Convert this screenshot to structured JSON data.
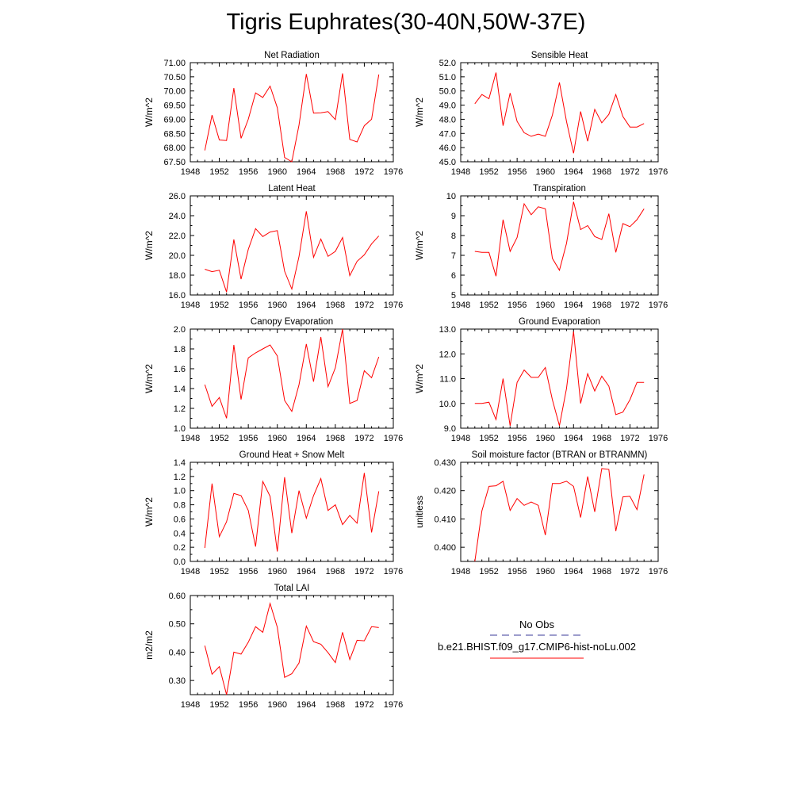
{
  "page": {
    "title": "Tigris Euphrates(30-40N,50W-37E)"
  },
  "colors": {
    "series": "#ff0000",
    "obs": "#3b3b99",
    "axis": "#000000"
  },
  "legend": {
    "obs_label": "No Obs",
    "model_label": "b.e21.BHIST.f09_g17.CMIP6-hist-noLu.002"
  },
  "chart_data": [
    {
      "type": "line",
      "title": "Net Radiation",
      "ylabel": "W/m^2",
      "xlim": [
        1948,
        1976
      ],
      "ylim": [
        67.5,
        71.0
      ],
      "xticks": [
        1948,
        1952,
        1956,
        1960,
        1964,
        1968,
        1972,
        1976
      ],
      "yticks": [
        "67.50",
        "68.00",
        "68.50",
        "69.00",
        "69.50",
        "70.00",
        "70.50",
        "71.00"
      ],
      "x": [
        1950,
        1951,
        1952,
        1953,
        1954,
        1955,
        1956,
        1957,
        1958,
        1959,
        1960,
        1961,
        1962,
        1963,
        1964,
        1965,
        1966,
        1967,
        1968,
        1969,
        1970,
        1971,
        1972,
        1973,
        1974
      ],
      "series": [
        {
          "values": [
            67.9,
            69.15,
            68.27,
            68.25,
            70.1,
            68.33,
            69.0,
            69.93,
            69.77,
            70.17,
            69.41,
            67.65,
            67.5,
            68.8,
            70.6,
            69.22,
            69.23,
            69.27,
            68.99,
            70.62,
            68.29,
            68.2,
            68.77,
            69.0,
            70.58
          ]
        }
      ]
    },
    {
      "type": "line",
      "title": "Sensible Heat",
      "ylabel": "W/m^2",
      "xlim": [
        1948,
        1976
      ],
      "ylim": [
        45.0,
        52.0
      ],
      "xticks": [
        1948,
        1952,
        1956,
        1960,
        1964,
        1968,
        1972,
        1976
      ],
      "yticks": [
        "45.0",
        "46.0",
        "47.0",
        "48.0",
        "49.0",
        "50.0",
        "51.0",
        "52.0"
      ],
      "x": [
        1950,
        1951,
        1952,
        1953,
        1954,
        1955,
        1956,
        1957,
        1958,
        1959,
        1960,
        1961,
        1962,
        1963,
        1964,
        1965,
        1966,
        1967,
        1968,
        1969,
        1970,
        1971,
        1972,
        1973,
        1974
      ],
      "series": [
        {
          "values": [
            49.1,
            49.75,
            49.45,
            51.3,
            47.55,
            49.85,
            47.85,
            47.05,
            46.8,
            46.95,
            46.8,
            48.3,
            50.6,
            47.85,
            45.6,
            48.55,
            46.45,
            48.7,
            47.75,
            48.35,
            49.75,
            48.2,
            47.45,
            47.45,
            47.7
          ]
        }
      ]
    },
    {
      "type": "line",
      "title": "Latent Heat",
      "ylabel": "W/m^2",
      "xlim": [
        1948,
        1976
      ],
      "ylim": [
        16.0,
        26.0
      ],
      "xticks": [
        1948,
        1952,
        1956,
        1960,
        1964,
        1968,
        1972,
        1976
      ],
      "yticks": [
        "16.0",
        "18.0",
        "20.0",
        "22.0",
        "24.0",
        "26.0"
      ],
      "x": [
        1950,
        1951,
        1952,
        1953,
        1954,
        1955,
        1956,
        1957,
        1958,
        1959,
        1960,
        1961,
        1962,
        1963,
        1964,
        1965,
        1966,
        1967,
        1968,
        1969,
        1970,
        1971,
        1972,
        1973,
        1974
      ],
      "series": [
        {
          "values": [
            18.6,
            18.35,
            18.5,
            16.3,
            21.6,
            17.6,
            20.6,
            22.7,
            21.9,
            22.35,
            22.5,
            18.4,
            16.6,
            19.9,
            24.45,
            19.8,
            21.65,
            19.9,
            20.4,
            21.8,
            17.95,
            19.4,
            20.05,
            21.15,
            21.95
          ]
        }
      ]
    },
    {
      "type": "line",
      "title": "Transpiration",
      "ylabel": "W/m^2",
      "xlim": [
        1948,
        1976
      ],
      "ylim": [
        5,
        10
      ],
      "xticks": [
        1948,
        1952,
        1956,
        1960,
        1964,
        1968,
        1972,
        1976
      ],
      "yticks": [
        "5",
        "6",
        "7",
        "8",
        "9",
        "10"
      ],
      "x": [
        1950,
        1951,
        1952,
        1953,
        1954,
        1955,
        1956,
        1957,
        1958,
        1959,
        1960,
        1961,
        1962,
        1963,
        1964,
        1965,
        1966,
        1967,
        1968,
        1969,
        1970,
        1971,
        1972,
        1973,
        1974
      ],
      "series": [
        {
          "values": [
            7.2,
            7.15,
            7.15,
            5.95,
            8.8,
            7.2,
            7.9,
            9.6,
            9.05,
            9.45,
            9.35,
            6.85,
            6.25,
            7.6,
            9.7,
            8.3,
            8.5,
            7.95,
            7.8,
            9.1,
            7.15,
            8.6,
            8.45,
            8.8,
            9.35
          ]
        }
      ]
    },
    {
      "type": "line",
      "title": "Canopy Evaporation",
      "ylabel": "W/m^2",
      "xlim": [
        1948,
        1976
      ],
      "ylim": [
        1.0,
        2.0
      ],
      "xticks": [
        1948,
        1952,
        1956,
        1960,
        1964,
        1968,
        1972,
        1976
      ],
      "yticks": [
        "1.0",
        "1.2",
        "1.4",
        "1.6",
        "1.8",
        "2.0"
      ],
      "x": [
        1950,
        1951,
        1952,
        1953,
        1954,
        1955,
        1956,
        1957,
        1958,
        1959,
        1960,
        1961,
        1962,
        1963,
        1964,
        1965,
        1966,
        1967,
        1968,
        1969,
        1970,
        1971,
        1972,
        1973,
        1974
      ],
      "series": [
        {
          "values": [
            1.44,
            1.22,
            1.31,
            1.1,
            1.84,
            1.29,
            1.71,
            1.76,
            1.8,
            1.84,
            1.73,
            1.28,
            1.17,
            1.44,
            1.85,
            1.47,
            1.92,
            1.42,
            1.61,
            2.0,
            1.25,
            1.28,
            1.58,
            1.51,
            1.72
          ]
        }
      ]
    },
    {
      "type": "line",
      "title": "Ground Evaporation",
      "ylabel": "W/m^2",
      "xlim": [
        1948,
        1976
      ],
      "ylim": [
        9.0,
        13.0
      ],
      "xticks": [
        1948,
        1952,
        1956,
        1960,
        1964,
        1968,
        1972,
        1976
      ],
      "yticks": [
        "9.0",
        "10.0",
        "11.0",
        "12.0",
        "13.0"
      ],
      "x": [
        1950,
        1951,
        1952,
        1953,
        1954,
        1955,
        1956,
        1957,
        1958,
        1959,
        1960,
        1961,
        1962,
        1963,
        1964,
        1965,
        1966,
        1967,
        1968,
        1969,
        1970,
        1971,
        1972,
        1973,
        1974
      ],
      "series": [
        {
          "values": [
            10.0,
            10.0,
            10.05,
            9.35,
            11.0,
            9.1,
            10.85,
            11.35,
            11.05,
            11.05,
            11.45,
            10.15,
            9.1,
            10.6,
            12.9,
            10.0,
            11.2,
            10.5,
            11.1,
            10.7,
            9.55,
            9.65,
            10.15,
            10.85,
            10.85
          ]
        }
      ]
    },
    {
      "type": "line",
      "title": "Ground Heat + Snow Melt",
      "ylabel": "W/m^2",
      "xlim": [
        1948,
        1976
      ],
      "ylim": [
        0.0,
        1.4
      ],
      "xticks": [
        1948,
        1952,
        1956,
        1960,
        1964,
        1968,
        1972,
        1976
      ],
      "yticks": [
        "0.0",
        "0.2",
        "0.4",
        "0.6",
        "0.8",
        "1.0",
        "1.2",
        "1.4"
      ],
      "x": [
        1950,
        1951,
        1952,
        1953,
        1954,
        1955,
        1956,
        1957,
        1958,
        1959,
        1960,
        1961,
        1962,
        1963,
        1964,
        1965,
        1966,
        1967,
        1968,
        1969,
        1970,
        1971,
        1972,
        1973,
        1974
      ],
      "series": [
        {
          "values": [
            0.19,
            1.1,
            0.35,
            0.56,
            0.96,
            0.93,
            0.72,
            0.21,
            1.13,
            0.92,
            0.14,
            1.19,
            0.4,
            1.0,
            0.61,
            0.93,
            1.17,
            0.72,
            0.8,
            0.52,
            0.65,
            0.54,
            1.25,
            0.41,
            0.99
          ]
        }
      ]
    },
    {
      "type": "line",
      "title": "Soil moisture factor (BTRAN or BTRANMN)",
      "ylabel": "unitless",
      "xlim": [
        1948,
        1976
      ],
      "ylim": [
        0.395,
        0.43
      ],
      "xticks": [
        1948,
        1952,
        1956,
        1960,
        1964,
        1968,
        1972,
        1976
      ],
      "yticks": [
        "0.400",
        "0.410",
        "0.420",
        "0.430"
      ],
      "x": [
        1950,
        1951,
        1952,
        1953,
        1954,
        1955,
        1956,
        1957,
        1958,
        1959,
        1960,
        1961,
        1962,
        1963,
        1964,
        1965,
        1966,
        1967,
        1968,
        1969,
        1970,
        1971,
        1972,
        1973,
        1974
      ],
      "series": [
        {
          "values": [
            0.395,
            0.4128,
            0.4215,
            0.4217,
            0.4233,
            0.413,
            0.4172,
            0.4148,
            0.416,
            0.4148,
            0.4043,
            0.4225,
            0.4225,
            0.4233,
            0.4215,
            0.4105,
            0.425,
            0.4125,
            0.4278,
            0.4275,
            0.4057,
            0.4178,
            0.418,
            0.4133,
            0.4257
          ]
        }
      ]
    },
    {
      "type": "line",
      "title": "Total LAI",
      "ylabel": "m2/m2",
      "xlim": [
        1948,
        1976
      ],
      "ylim": [
        0.25,
        0.6
      ],
      "xticks": [
        1948,
        1952,
        1956,
        1960,
        1964,
        1968,
        1972,
        1976
      ],
      "yticks": [
        "0.30",
        "0.40",
        "0.50",
        "0.60"
      ],
      "x": [
        1950,
        1951,
        1952,
        1953,
        1954,
        1955,
        1956,
        1957,
        1958,
        1959,
        1960,
        1961,
        1962,
        1963,
        1964,
        1965,
        1966,
        1967,
        1968,
        1969,
        1970,
        1971,
        1972,
        1973,
        1974
      ],
      "series": [
        {
          "values": [
            0.423,
            0.322,
            0.349,
            0.25,
            0.4,
            0.393,
            0.435,
            0.49,
            0.47,
            0.572,
            0.488,
            0.311,
            0.324,
            0.362,
            0.492,
            0.437,
            0.428,
            0.398,
            0.363,
            0.47,
            0.374,
            0.442,
            0.44,
            0.49,
            0.487
          ]
        }
      ]
    }
  ]
}
